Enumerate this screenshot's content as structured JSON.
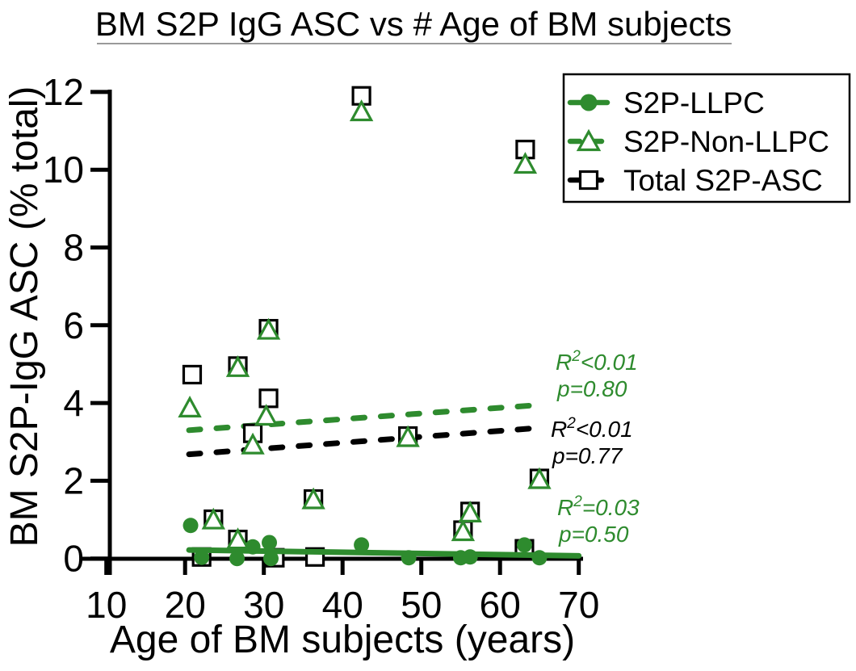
{
  "colors": {
    "green": "#2e8b2e",
    "black": "#000000",
    "underline": "#9a9a9a"
  },
  "chart_data": {
    "type": "scatter",
    "title": "BM S2P IgG ASC vs # Age of BM subjects",
    "xlabel": "Age of BM subjects (years)",
    "ylabel": "BM S2P-IgG ASC (% total)",
    "xlim": [
      10,
      70
    ],
    "ylim": [
      0,
      12
    ],
    "xticks": [
      10,
      20,
      30,
      40,
      50,
      60,
      70
    ],
    "yticks": [
      0,
      2,
      4,
      6,
      8,
      10,
      12
    ],
    "grid": false,
    "legend_position": "top-right",
    "series": [
      {
        "name": "S2P-LLPC",
        "marker": "circle-filled",
        "color": "#2e8b2e",
        "points": [
          [
            20.7,
            0.85
          ],
          [
            22.1,
            0.03
          ],
          [
            26.6,
            0.0
          ],
          [
            28.6,
            0.3
          ],
          [
            30.7,
            0.41
          ],
          [
            30.9,
            0.0
          ],
          [
            42.4,
            0.35
          ],
          [
            48.4,
            0.02
          ],
          [
            55.0,
            0.02
          ],
          [
            56.2,
            0.04
          ],
          [
            63.1,
            0.35
          ],
          [
            65.0,
            0.02
          ]
        ]
      },
      {
        "name": "S2P-Non-LLPC",
        "marker": "triangle-open",
        "color": "#2e8b2e",
        "points": [
          [
            20.6,
            3.88
          ],
          [
            23.6,
            1.0
          ],
          [
            26.7,
            4.92
          ],
          [
            26.7,
            0.49
          ],
          [
            28.6,
            2.93
          ],
          [
            30.6,
            5.88
          ],
          [
            30.3,
            3.67
          ],
          [
            36.3,
            1.52
          ],
          [
            42.4,
            11.5
          ],
          [
            48.3,
            3.12
          ],
          [
            55.3,
            0.7
          ],
          [
            56.2,
            1.18
          ],
          [
            63.2,
            10.15
          ],
          [
            65.0,
            2.04
          ]
        ]
      },
      {
        "name": "Total S2P-ASC",
        "marker": "square-open",
        "color": "#000000",
        "points": [
          [
            20.9,
            4.73
          ],
          [
            22.1,
            0.04
          ],
          [
            23.6,
            1.01
          ],
          [
            26.7,
            4.95
          ],
          [
            26.7,
            0.49
          ],
          [
            28.6,
            3.22
          ],
          [
            30.6,
            5.91
          ],
          [
            30.6,
            4.12
          ],
          [
            31.4,
            0.02
          ],
          [
            36.3,
            1.53
          ],
          [
            36.5,
            0.04
          ],
          [
            42.4,
            11.9
          ],
          [
            48.3,
            3.15
          ],
          [
            55.3,
            0.73
          ],
          [
            56.2,
            1.21
          ],
          [
            63.2,
            10.52
          ],
          [
            63.1,
            0.25
          ],
          [
            65.0,
            2.06
          ]
        ]
      }
    ],
    "trendlines": [
      {
        "series": "S2P-Non-LLPC",
        "style": "dashed",
        "color": "#2e8b2e",
        "x1": 20.5,
        "y1": 3.3,
        "x2": 65.0,
        "y2": 3.95
      },
      {
        "series": "Total S2P-ASC",
        "style": "dashed",
        "color": "#000000",
        "x1": 20.5,
        "y1": 2.68,
        "x2": 65.0,
        "y2": 3.36
      },
      {
        "series": "S2P-LLPC",
        "style": "solid",
        "color": "#2e8b2e",
        "x1": 20.5,
        "y1": 0.22,
        "x2": 70.0,
        "y2": 0.07
      }
    ],
    "annotations": [
      {
        "series": "S2P-Non-LLPC",
        "r2_base": "R",
        "r2_sup": "2",
        "r2_rest": "<0.01",
        "p": "p=0.80",
        "color": "#2e8b2e"
      },
      {
        "series": "Total S2P-ASC",
        "r2_base": "R",
        "r2_sup": "2",
        "r2_rest": "<0.01",
        "p": "p=0.77",
        "color": "#000000"
      },
      {
        "series": "S2P-LLPC",
        "r2_base": "R",
        "r2_sup": "2",
        "r2_rest": "=0.03",
        "p": "p=0.50",
        "color": "#2e8b2e"
      }
    ],
    "legend": {
      "entries": [
        {
          "label": "S2P-LLPC",
          "marker": "circle-filled",
          "line": "solid",
          "color": "#2e8b2e"
        },
        {
          "label": "S2P-Non-LLPC",
          "marker": "triangle-open",
          "line": "dashed",
          "color": "#2e8b2e"
        },
        {
          "label": "Total S2P-ASC",
          "marker": "square-open",
          "line": "dashed",
          "color": "#000000"
        }
      ]
    }
  }
}
